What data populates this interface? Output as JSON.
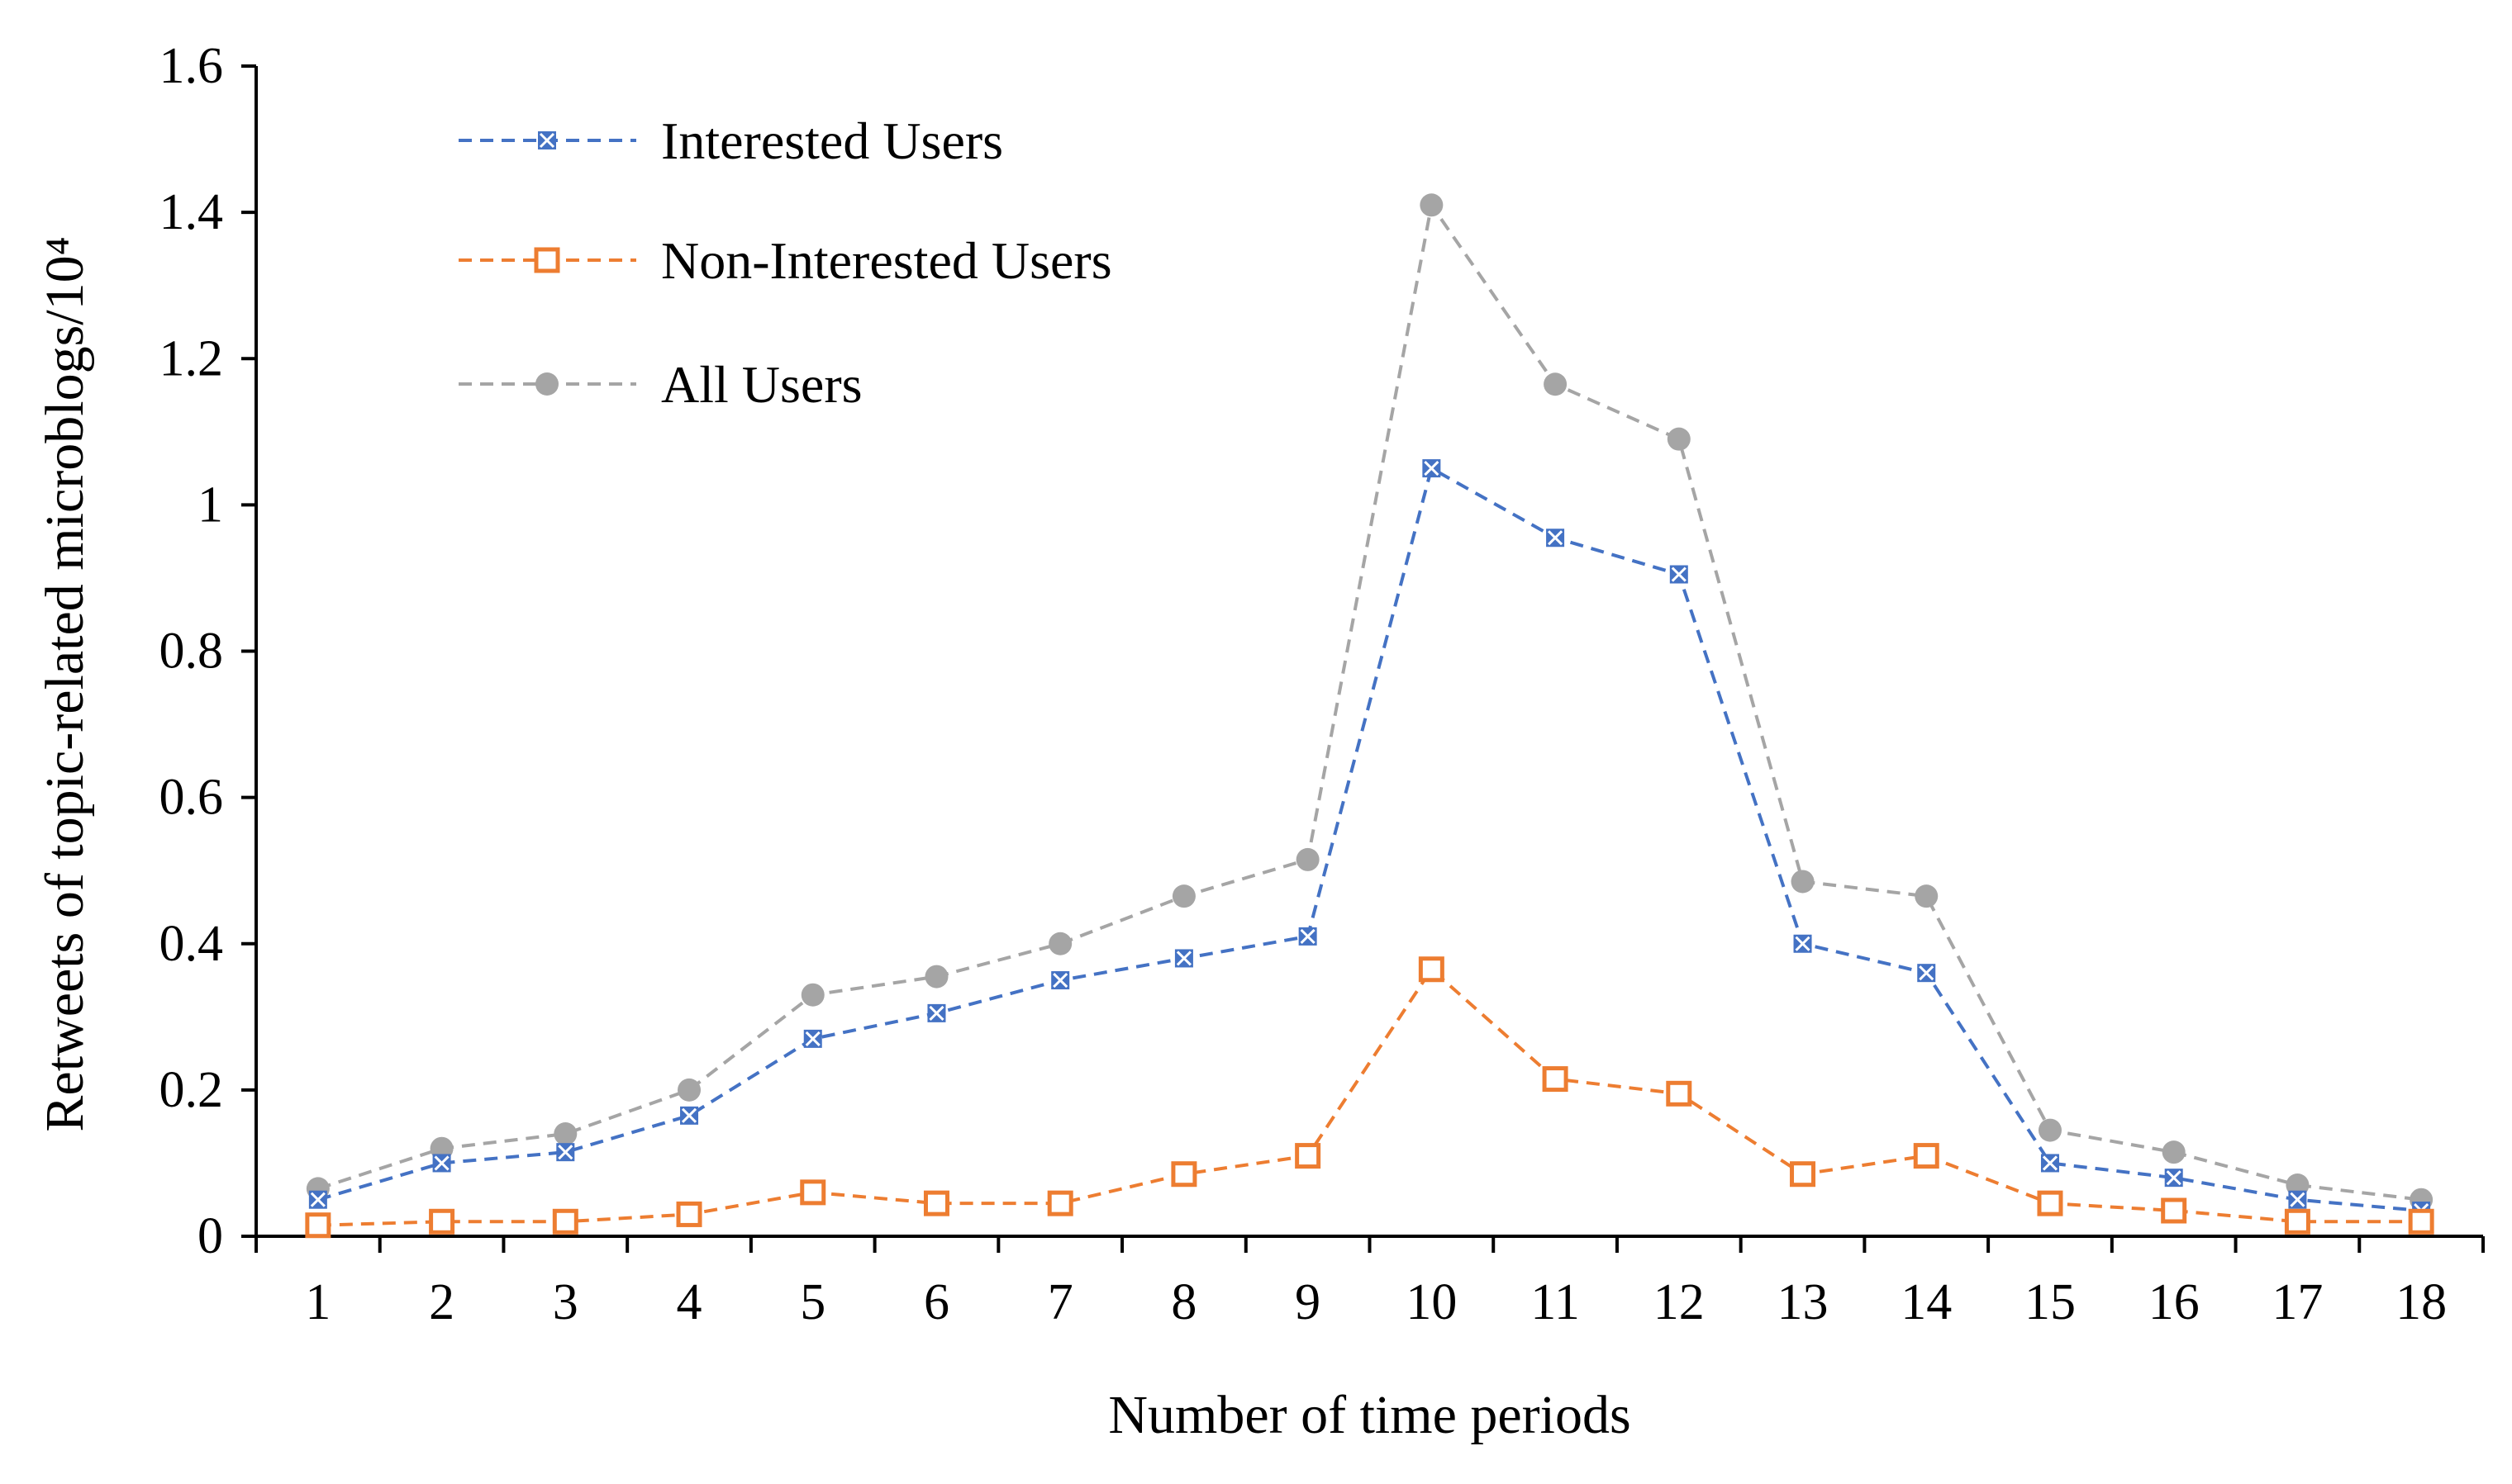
{
  "chart_data": {
    "type": "line",
    "title": "",
    "xlabel": "Number of time periods",
    "ylabel": "Retweets of topic-related microblogs/10⁴",
    "categories": [
      "1",
      "2",
      "3",
      "4",
      "5",
      "6",
      "7",
      "8",
      "9",
      "10",
      "11",
      "12",
      "13",
      "14",
      "15",
      "16",
      "17",
      "18"
    ],
    "ylim": [
      0,
      1.6
    ],
    "yticks": [
      "0",
      "0.2",
      "0.4",
      "0.6",
      "0.8",
      "1",
      "1.2",
      "1.4",
      "1.6"
    ],
    "legend_position": "top-left",
    "series": [
      {
        "name": "Interested Users",
        "color": "#4472c4",
        "marker": "x-square",
        "values": [
          0.05,
          0.1,
          0.115,
          0.165,
          0.27,
          0.305,
          0.35,
          0.38,
          0.41,
          1.05,
          0.955,
          0.905,
          0.4,
          0.36,
          0.1,
          0.08,
          0.05,
          0.035
        ]
      },
      {
        "name": "Non-Interested Users",
        "color": "#ed7d31",
        "marker": "square",
        "values": [
          0.015,
          0.02,
          0.02,
          0.03,
          0.06,
          0.045,
          0.045,
          0.085,
          0.11,
          0.365,
          0.215,
          0.195,
          0.085,
          0.11,
          0.045,
          0.035,
          0.02,
          0.02
        ]
      },
      {
        "name": "All Users",
        "color": "#a5a5a5",
        "marker": "circle",
        "values": [
          0.065,
          0.12,
          0.14,
          0.2,
          0.33,
          0.355,
          0.4,
          0.465,
          0.515,
          1.41,
          1.165,
          1.09,
          0.485,
          0.465,
          0.145,
          0.115,
          0.07,
          0.05
        ]
      }
    ]
  }
}
